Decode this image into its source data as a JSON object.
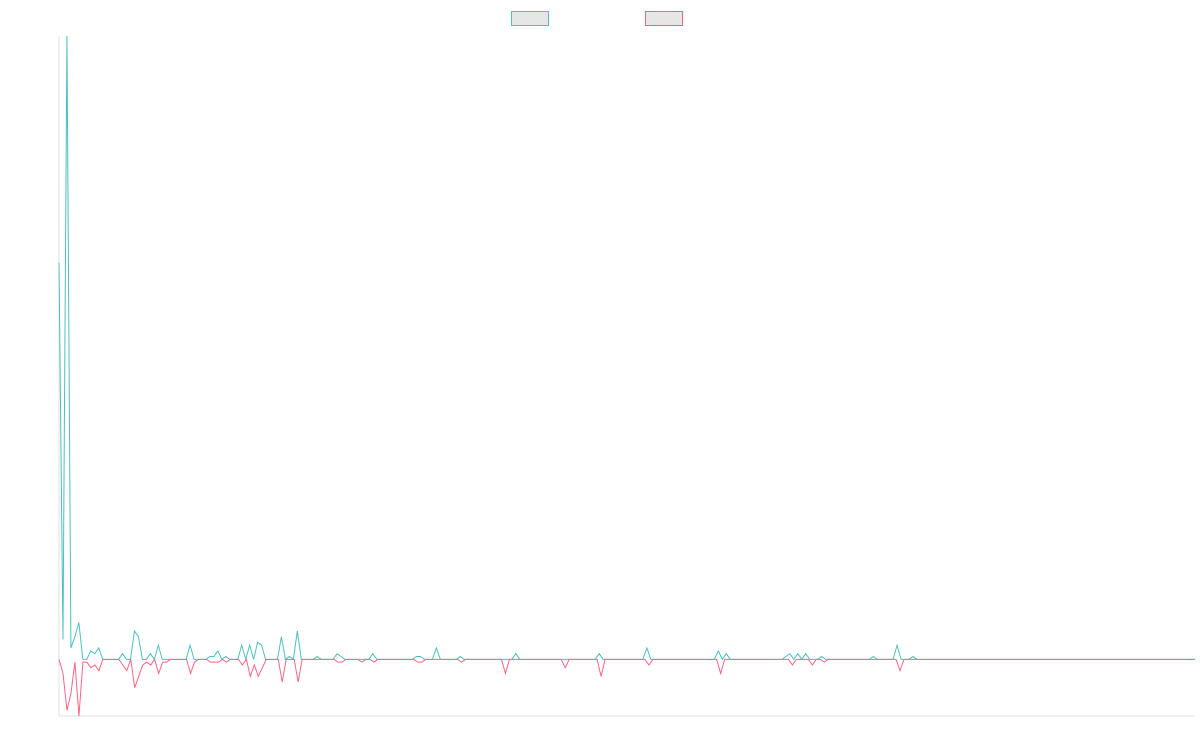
{
  "chart_data": {
    "type": "line",
    "title": "",
    "xlabel": "",
    "ylabel": "",
    "legend_position": "top-center",
    "grid": false,
    "ylim": [
      -10,
      110
    ],
    "series": [
      {
        "name": "",
        "color": "#4bc0c0",
        "legend_fill": "#e6e6e6",
        "values": [
          70,
          3.5,
          110,
          2,
          4,
          6.5,
          0,
          0,
          1.5,
          1,
          2,
          0,
          0,
          0,
          0,
          0,
          1,
          0,
          0,
          5,
          4,
          0,
          0,
          1,
          0,
          2.5,
          0,
          0,
          0,
          0,
          0,
          0,
          0,
          2.5,
          0,
          0,
          0,
          0,
          0.5,
          0.5,
          1.5,
          0,
          0.5,
          0,
          0,
          0,
          2.5,
          0,
          2.5,
          0,
          3,
          2.5,
          0,
          0,
          0,
          0,
          4,
          0,
          0.5,
          0,
          5,
          0,
          0,
          0,
          0,
          0.5,
          0,
          0,
          0,
          0,
          1,
          0.5,
          0,
          0,
          0,
          0,
          0,
          0,
          0,
          1,
          0,
          0,
          0,
          0,
          0,
          0,
          0,
          0,
          0,
          0,
          0.5,
          0.5,
          0,
          0,
          0,
          2,
          0,
          0,
          0,
          0,
          0,
          0.5,
          0,
          0,
          0,
          0,
          0,
          0,
          0,
          0,
          0,
          0,
          0,
          0,
          0,
          1,
          0,
          0,
          0,
          0,
          0,
          0,
          0,
          0,
          0,
          0,
          0,
          0,
          0,
          0,
          0,
          0,
          0,
          0,
          0,
          0,
          1,
          0,
          0,
          0,
          0,
          0,
          0,
          0,
          0,
          0,
          0,
          0,
          2,
          0,
          0,
          0,
          0,
          0,
          0,
          0,
          0,
          0,
          0,
          0,
          0,
          0,
          0,
          0,
          0,
          0,
          1.5,
          0,
          1,
          0,
          0,
          0,
          0,
          0,
          0,
          0,
          0,
          0,
          0,
          0,
          0,
          0,
          0,
          0.5,
          1,
          0,
          1,
          0,
          1,
          0,
          0,
          0,
          0.5,
          0,
          0,
          0,
          0,
          0,
          0,
          0,
          0,
          0,
          0,
          0,
          0,
          0.5,
          0,
          0,
          0,
          0,
          0,
          2.5,
          0,
          0,
          0,
          0.5,
          0,
          0,
          0,
          0,
          0,
          0,
          0,
          0,
          0,
          0,
          0,
          0,
          0,
          0,
          0,
          0,
          0,
          0,
          0,
          0,
          0,
          0,
          0,
          0,
          0,
          0,
          0,
          0,
          0,
          0,
          0,
          0,
          0,
          0,
          0,
          0,
          0,
          0,
          0,
          0,
          0,
          0,
          0,
          0,
          0,
          0,
          0,
          0,
          0,
          0,
          0,
          0,
          0,
          0,
          0,
          0,
          0,
          0,
          0,
          0,
          0,
          0,
          0,
          0,
          0,
          0,
          0,
          0,
          0,
          0,
          0
        ]
      },
      {
        "name": "",
        "color": "#ff6384",
        "legend_fill": "#e6e6e6",
        "values": [
          0,
          -2.5,
          -9,
          -6,
          -0.5,
          -10,
          -0.5,
          -0.5,
          -1.5,
          -1,
          -2,
          0,
          0,
          0,
          0,
          0,
          -1,
          -2,
          0,
          -5,
          -3,
          -1,
          -0.5,
          -1,
          0,
          -2.5,
          -0.5,
          -0.5,
          0,
          0,
          0,
          0,
          0,
          -2.5,
          -0.5,
          0,
          0,
          0,
          -0.5,
          -0.5,
          -0.5,
          0,
          -0.5,
          0,
          0,
          0,
          -1,
          0,
          -3,
          -1,
          -3,
          -1.5,
          0,
          0,
          0,
          0,
          -4,
          0,
          0,
          0,
          -4,
          0,
          0,
          0,
          0,
          0,
          0,
          0,
          0,
          0,
          -0.5,
          -0.5,
          0,
          0,
          0,
          0,
          -0.5,
          0,
          0,
          -0.5,
          0,
          0,
          0,
          0,
          0,
          0,
          0,
          0,
          0,
          0,
          -0.5,
          -0.5,
          0,
          0,
          0,
          0,
          0,
          0,
          0,
          0,
          0,
          -0.5,
          0,
          0,
          0,
          0,
          0,
          0,
          0,
          0,
          0,
          0,
          -2.5,
          0,
          0,
          0,
          0,
          0,
          0,
          0,
          0,
          0,
          0,
          0,
          0,
          0,
          0,
          -1.5,
          0,
          0,
          0,
          0,
          0,
          0,
          0,
          0,
          -3,
          0,
          0,
          0,
          0,
          0,
          0,
          0,
          0,
          0,
          0,
          0,
          -1,
          0,
          0,
          0,
          0,
          0,
          0,
          0,
          0,
          0,
          0,
          0,
          0,
          0,
          0,
          0,
          0,
          0,
          -2.5,
          0,
          0,
          0,
          0,
          0,
          0,
          0,
          0,
          0,
          0,
          0,
          0,
          0,
          0,
          0,
          0,
          0,
          -1,
          0,
          0,
          0,
          0,
          -1,
          0,
          0,
          -0.5,
          0,
          0,
          0,
          0,
          0,
          0,
          0,
          0,
          0,
          0,
          0,
          0,
          0,
          0,
          0,
          0,
          0,
          0,
          -2,
          0,
          0,
          0,
          0,
          0,
          0,
          0,
          0,
          0,
          0,
          0,
          0,
          0,
          0,
          0,
          0,
          0,
          0,
          0,
          0,
          0,
          0,
          0,
          0,
          0,
          0,
          0,
          0,
          0,
          0,
          0,
          0,
          0,
          0,
          0,
          0,
          0,
          0,
          0,
          0,
          0,
          0,
          0,
          0,
          0,
          0,
          0,
          0,
          0,
          0,
          0,
          0,
          0,
          0,
          0,
          0,
          0,
          0,
          0,
          0,
          0,
          0,
          0,
          0,
          0,
          0,
          0,
          0,
          0,
          0,
          0,
          0,
          0,
          0
        ]
      }
    ]
  }
}
